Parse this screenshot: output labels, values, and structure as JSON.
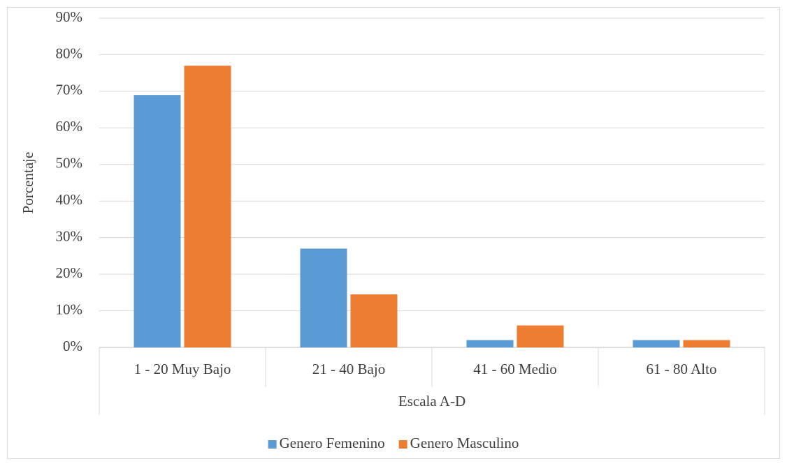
{
  "chart_data": {
    "type": "bar",
    "x_label": "Escala A-D",
    "y_label": "Porcentaje",
    "categories": [
      "1 - 20 Muy Bajo",
      "21 - 40 Bajo",
      "41 - 60 Medio",
      "61 - 80 Alto"
    ],
    "series": [
      {
        "name": "Genero Femenino",
        "color": "#5b9bd5",
        "values": [
          69,
          27,
          2,
          2
        ]
      },
      {
        "name": "Genero Masculino",
        "color": "#ed7d31",
        "values": [
          77,
          14.5,
          6,
          2
        ]
      }
    ],
    "ylim": [
      0,
      90
    ],
    "yticks": [
      {
        "value": 0,
        "label": "0%"
      },
      {
        "value": 10,
        "label": "10%"
      },
      {
        "value": 20,
        "label": "20%"
      },
      {
        "value": 30,
        "label": "30%"
      },
      {
        "value": 40,
        "label": "40%"
      },
      {
        "value": 50,
        "label": "50%"
      },
      {
        "value": 60,
        "label": "60%"
      },
      {
        "value": 70,
        "label": "70%"
      },
      {
        "value": 80,
        "label": "80%"
      },
      {
        "value": 90,
        "label": "90%"
      }
    ],
    "grid": true,
    "legend": "bottom"
  }
}
